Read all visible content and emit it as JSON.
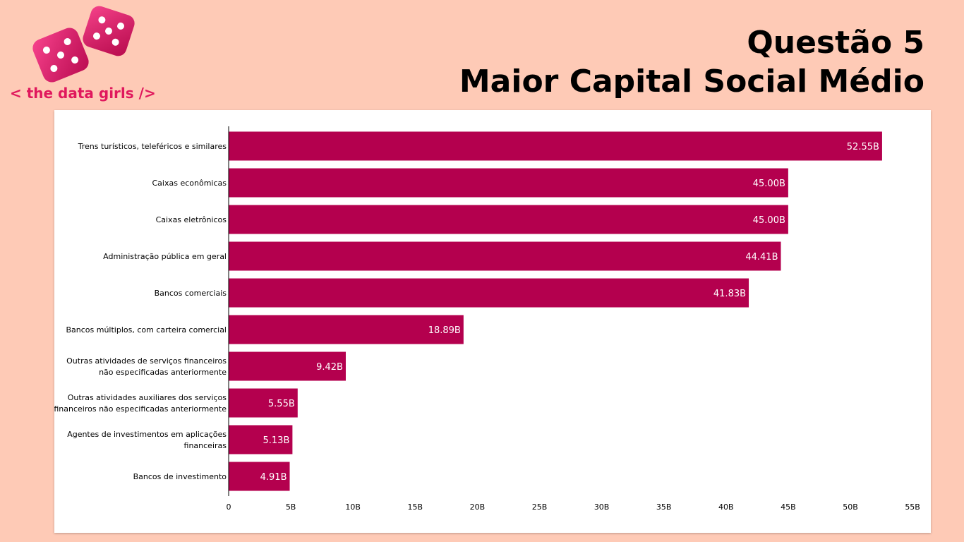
{
  "header": {
    "title_line1": "Questão 5",
    "title_line2": "Maior Capital Social Médio"
  },
  "logo": {
    "text": "< the data girls />",
    "icon": "dice-icon",
    "color": "#e0185d"
  },
  "colors": {
    "background": "#fecab6",
    "bar": "#b4004e",
    "panel": "#ffffff"
  },
  "chart_data": {
    "type": "bar",
    "orientation": "horizontal",
    "categories": [
      "Trens turísticos, teleféricos e similares",
      "Caixas econômicas",
      "Caixas eletrônicos",
      "Administração pública em geral",
      "Bancos comerciais",
      "Bancos múltiplos, com carteira comercial",
      "Outras atividades de serviços financeiros não especificadas anteriormente",
      "Outras atividades auxiliares dos serviços financeiros não especificadas anteriormente",
      "Agentes de investimentos em aplicações financeiras",
      "Bancos de investimento"
    ],
    "category_lines": [
      [
        "Trens turísticos, teleféricos e similares"
      ],
      [
        "Caixas econômicas"
      ],
      [
        "Caixas eletrônicos"
      ],
      [
        "Administração pública em geral"
      ],
      [
        "Bancos comerciais"
      ],
      [
        "Bancos múltiplos, com carteira comercial"
      ],
      [
        "Outras atividades de serviços financeiros",
        "não especificadas anteriormente"
      ],
      [
        "Outras atividades auxiliares dos serviços",
        "financeiros não especificadas anteriormente"
      ],
      [
        "Agentes de investimentos em aplicações",
        "financeiras"
      ],
      [
        "Bancos de investimento"
      ]
    ],
    "values": [
      52.55,
      45.0,
      45.0,
      44.41,
      41.83,
      18.89,
      9.42,
      5.55,
      5.13,
      4.91
    ],
    "value_labels": [
      "52.55B",
      "45.00B",
      "45.00B",
      "44.41B",
      "41.83B",
      "18.89B",
      "9.42B",
      "5.55B",
      "5.13B",
      "4.91B"
    ],
    "unit": "B",
    "xlim": [
      0,
      55
    ],
    "xticks": [
      0,
      5,
      10,
      15,
      20,
      25,
      30,
      35,
      40,
      45,
      50,
      55
    ],
    "xtick_labels": [
      "0",
      "5B",
      "10B",
      "15B",
      "20B",
      "25B",
      "30B",
      "35B",
      "40B",
      "45B",
      "50B",
      "55B"
    ],
    "grid": false,
    "legend": "none"
  }
}
